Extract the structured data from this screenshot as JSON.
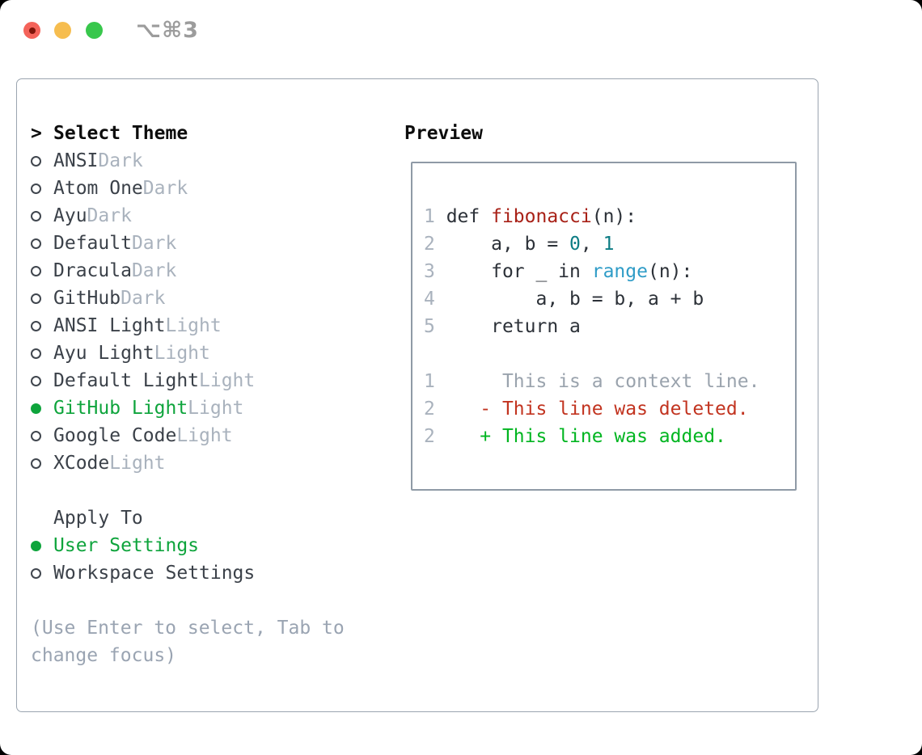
{
  "window": {
    "shortcut": "⌥⌘3",
    "traffic_lights": [
      "close",
      "minimize",
      "zoom"
    ]
  },
  "colors": {
    "accent_green": "#0ea43c",
    "added_green": "#00b520",
    "deleted_red": "#c23420",
    "function_red": "#a82117",
    "number_teal": "#0c7c84",
    "builtin_blue": "#2f9cc7",
    "muted_gray": "#a9b2bd",
    "panel_border": "#9ba5b0"
  },
  "select_theme": {
    "cursor": ">",
    "header": "Select Theme",
    "themes": [
      {
        "name": "ANSI",
        "variant": "Dark",
        "selected": false
      },
      {
        "name": "Atom One",
        "variant": "Dark",
        "selected": false
      },
      {
        "name": "Ayu",
        "variant": "Dark",
        "selected": false
      },
      {
        "name": "Default",
        "variant": "Dark",
        "selected": false
      },
      {
        "name": "Dracula",
        "variant": "Dark",
        "selected": false
      },
      {
        "name": "GitHub",
        "variant": "Dark",
        "selected": false
      },
      {
        "name": "ANSI Light",
        "variant": "Light",
        "selected": false
      },
      {
        "name": "Ayu Light",
        "variant": "Light",
        "selected": false
      },
      {
        "name": "Default Light",
        "variant": "Light",
        "selected": false
      },
      {
        "name": "GitHub Light",
        "variant": "Light",
        "selected": true
      },
      {
        "name": "Google Code",
        "variant": "Light",
        "selected": false
      },
      {
        "name": "XCode",
        "variant": "Light",
        "selected": false
      }
    ]
  },
  "apply_to": {
    "header": "Apply To",
    "options": [
      {
        "label": "User Settings",
        "selected": true
      },
      {
        "label": "Workspace Settings",
        "selected": false
      }
    ]
  },
  "hint": "(Use Enter to select, Tab to change focus)",
  "preview": {
    "title": "Preview",
    "lines": [
      {
        "kind": "code",
        "segments": [
          {
            "text": "1 ",
            "color": "num"
          },
          {
            "text": "def ",
            "color": "code"
          },
          {
            "text": "fibonacci",
            "color": "red"
          },
          {
            "text": "(n):",
            "color": "code"
          }
        ]
      },
      {
        "kind": "code",
        "segments": [
          {
            "text": "2 ",
            "color": "num"
          },
          {
            "text": "    a, b = ",
            "color": "code"
          },
          {
            "text": "0",
            "color": "teal"
          },
          {
            "text": ", ",
            "color": "code"
          },
          {
            "text": "1",
            "color": "teal"
          }
        ]
      },
      {
        "kind": "code",
        "segments": [
          {
            "text": "3 ",
            "color": "num"
          },
          {
            "text": "    for _ in ",
            "color": "code"
          },
          {
            "text": "range",
            "color": "blue"
          },
          {
            "text": "(n):",
            "color": "code"
          }
        ]
      },
      {
        "kind": "code",
        "segments": [
          {
            "text": "4 ",
            "color": "num"
          },
          {
            "text": "        a, b = b, a + b",
            "color": "code"
          }
        ]
      },
      {
        "kind": "code",
        "segments": [
          {
            "text": "5 ",
            "color": "num"
          },
          {
            "text": "    return a",
            "color": "code"
          }
        ]
      },
      {
        "kind": "blank",
        "segments": []
      },
      {
        "kind": "diff-context",
        "segments": [
          {
            "text": "1 ",
            "color": "num"
          },
          {
            "text": "     This is a context line.",
            "color": "ctx"
          }
        ]
      },
      {
        "kind": "diff-deleted",
        "segments": [
          {
            "text": "2 ",
            "color": "num"
          },
          {
            "text": "   - This line was deleted.",
            "color": "del"
          }
        ]
      },
      {
        "kind": "diff-added",
        "segments": [
          {
            "text": "2 ",
            "color": "num"
          },
          {
            "text": "   + This line was added.",
            "color": "add"
          }
        ]
      }
    ]
  }
}
